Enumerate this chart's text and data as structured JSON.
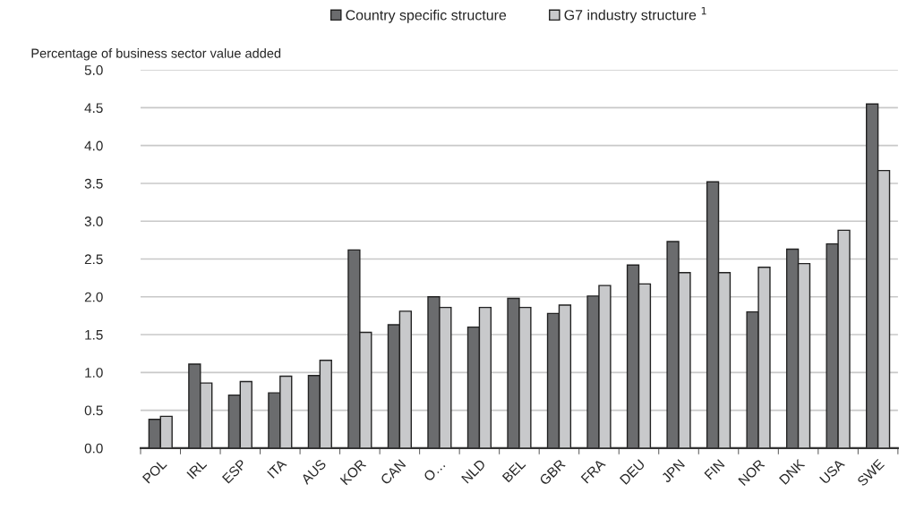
{
  "chart_data": {
    "type": "bar",
    "ylabel": "Percentage of business sector value added",
    "categories": [
      "POL",
      "IRL",
      "ESP",
      "ITA",
      "AUS",
      "KOR",
      "CAN",
      "O…",
      "NLD",
      "BEL",
      "GBR",
      "FRA",
      "DEU",
      "JPN",
      "FIN",
      "NOR",
      "DNK",
      "USA",
      "SWE"
    ],
    "series": [
      {
        "name": "Country specific structure",
        "color": "#6b6c6e",
        "values": [
          0.38,
          1.11,
          0.7,
          0.73,
          0.96,
          2.62,
          1.63,
          2.0,
          1.6,
          1.98,
          1.78,
          2.01,
          2.42,
          2.73,
          3.52,
          1.8,
          2.63,
          2.7,
          4.55
        ]
      },
      {
        "name": "G7 industry structure $^{1}$",
        "color": "#c8c9cb",
        "values": [
          0.42,
          0.86,
          0.88,
          0.95,
          1.16,
          1.53,
          1.81,
          1.86,
          1.86,
          1.86,
          1.89,
          2.15,
          2.17,
          2.32,
          2.32,
          2.39,
          2.44,
          2.88,
          3.67
        ]
      }
    ],
    "ylim": [
      0,
      5.0
    ],
    "yticks": [
      {
        "value": 0,
        "label": "0.0"
      },
      {
        "value": 0.5,
        "label": "0.5"
      },
      {
        "value": 1.0,
        "label": "1.0"
      },
      {
        "value": 1.5,
        "label": "1.5"
      },
      {
        "value": 2.0,
        "label": "2.0"
      },
      {
        "value": 2.5,
        "label": "2.5"
      },
      {
        "value": 3.0,
        "label": "3.0"
      },
      {
        "value": 3.5,
        "label": "3.5"
      },
      {
        "value": 4.0,
        "label": "4.0"
      },
      {
        "value": 4.5,
        "label": "4.5"
      },
      {
        "value": 5.0,
        "label": "5.0"
      }
    ],
    "grid": "y",
    "legend": "top"
  }
}
